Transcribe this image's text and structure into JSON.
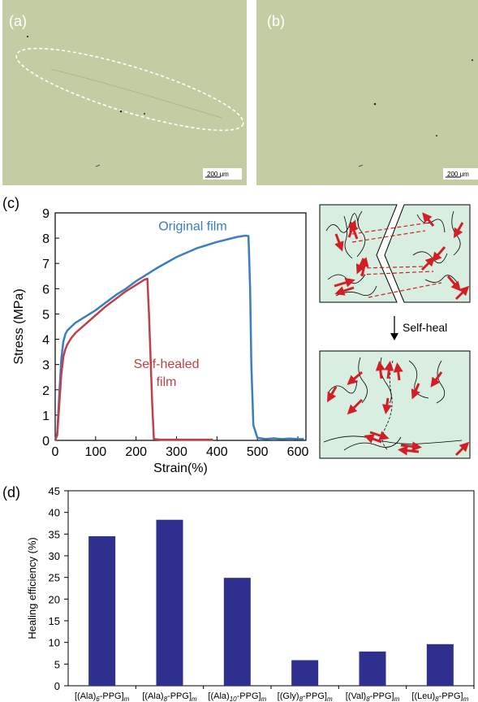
{
  "panels": {
    "a": {
      "label": "(a)",
      "scale_bar": "200 μm"
    },
    "b": {
      "label": "(b)",
      "scale_bar": "200 μm"
    },
    "c": {
      "label": "(c)"
    },
    "d": {
      "label": "(d)"
    }
  },
  "micrograph_color": "#c3cda3",
  "schematic": {
    "self_heal_label": "Self-heal",
    "background_color": "#d7eee1",
    "arrow_color": "#d21f26"
  },
  "chart_data": [
    {
      "type": "line",
      "title": "",
      "xlabel": "Strain(%)",
      "ylabel": "Stress (MPa)",
      "xlim": [
        0,
        620
      ],
      "ylim": [
        0,
        9
      ],
      "xticks": [
        "0",
        "100",
        "200",
        "300",
        "400",
        "500",
        "600"
      ],
      "yticks": [
        "0",
        "1",
        "2",
        "3",
        "4",
        "5",
        "6",
        "7",
        "8",
        "9"
      ],
      "grid": false,
      "series": [
        {
          "name": "Original film",
          "label_lines": [
            "Original film"
          ],
          "color": "#3a7dc0",
          "x": [
            0,
            5,
            10,
            15,
            20,
            25,
            30,
            40,
            50,
            75,
            100,
            125,
            150,
            175,
            200,
            250,
            300,
            350,
            400,
            450,
            470,
            478,
            482,
            485,
            490,
            500,
            520,
            540,
            560,
            580,
            600,
            615
          ],
          "y": [
            0,
            0.3,
            1.8,
            3.2,
            3.9,
            4.2,
            4.35,
            4.5,
            4.65,
            4.9,
            5.15,
            5.45,
            5.75,
            6.0,
            6.3,
            6.8,
            7.25,
            7.6,
            7.85,
            8.05,
            8.1,
            8.08,
            6.0,
            3.0,
            0.6,
            0.1,
            0.05,
            0.08,
            0.05,
            0.07,
            0.05,
            0.05
          ]
        },
        {
          "name": "Self-healed film",
          "label_lines": [
            "Self-healed",
            "film"
          ],
          "color": "#c0404a",
          "x": [
            0,
            5,
            10,
            15,
            20,
            25,
            30,
            40,
            50,
            75,
            100,
            125,
            150,
            175,
            200,
            220,
            228,
            232,
            236,
            240,
            244,
            260,
            300,
            350,
            390
          ],
          "y": [
            0,
            0.2,
            1.4,
            2.6,
            3.3,
            3.6,
            3.8,
            4.05,
            4.25,
            4.6,
            4.95,
            5.3,
            5.6,
            5.9,
            6.15,
            6.35,
            6.4,
            5.0,
            3.2,
            1.4,
            0.05,
            0.03,
            0.03,
            0.03,
            0.03
          ]
        }
      ]
    },
    {
      "type": "bar",
      "title": "",
      "xlabel": "",
      "ylabel": "Healing efficiency (%)",
      "ylim": [
        0,
        45
      ],
      "yticks": [
        "0",
        "5",
        "10",
        "15",
        "20",
        "25",
        "30",
        "35",
        "40",
        "45"
      ],
      "color": "#2e2f8e",
      "grid": false,
      "categories": [
        {
          "pre": "[(Ala)",
          "sub": "6",
          "post": "-PPG]",
          "tail": "m"
        },
        {
          "pre": "[(Ala)",
          "sub": "8",
          "post": "-PPG]",
          "tail": "m"
        },
        {
          "pre": "[(Ala)",
          "sub": "10",
          "post": "-PPG]",
          "tail": "m"
        },
        {
          "pre": "[(Gly)",
          "sub": "8",
          "post": "-PPG]",
          "tail": "m"
        },
        {
          "pre": "[(Val)",
          "sub": "8",
          "post": "-PPG]",
          "tail": "m"
        },
        {
          "pre": "[(Leu)",
          "sub": "8",
          "post": "-PPG]",
          "tail": "m"
        }
      ],
      "values": [
        34.5,
        38.3,
        24.9,
        5.9,
        7.9,
        9.6
      ]
    }
  ]
}
